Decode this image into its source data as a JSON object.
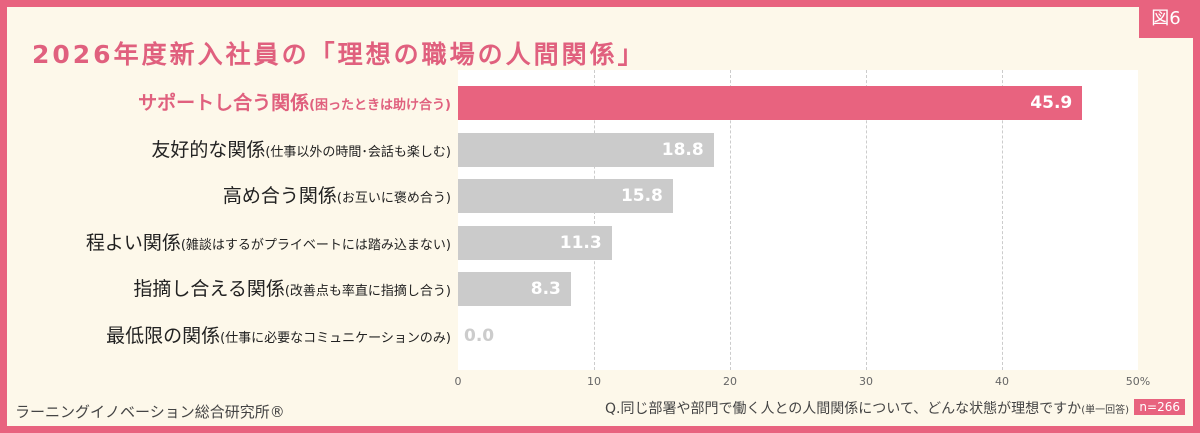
{
  "figure_label": "図6",
  "footer": {
    "source": "ラーニングイノベーション総合研究所®",
    "question": "Q.同じ部署や部門で働く人との人間関係について、どんな状態が理想ですか",
    "question_note": "(単一回答)",
    "n": "n=266"
  },
  "colors": {
    "highlight": "#e8637f",
    "bar": "#cbcbcb"
  },
  "chart_data": {
    "type": "bar",
    "orientation": "horizontal",
    "title": "2026年度新入社員の「理想の職場の人間関係」",
    "categories": [
      {
        "main": "サポートし合う関係",
        "sub": "(困ったときは助け合う)"
      },
      {
        "main": "友好的な関係",
        "sub": "(仕事以外の時間･会話も楽しむ)"
      },
      {
        "main": "高め合う関係",
        "sub": "(お互いに褒め合う)"
      },
      {
        "main": "程よい関係",
        "sub": "(雑談はするがプライベートには踏み込まない)"
      },
      {
        "main": "指摘し合える関係",
        "sub": "(改善点も率直に指摘し合う)"
      },
      {
        "main": "最低限の関係",
        "sub": "(仕事に必要なコミュニケーションのみ)"
      }
    ],
    "values": [
      45.9,
      18.8,
      15.8,
      11.3,
      8.3,
      0.0
    ],
    "value_labels": [
      "45.9",
      "18.8",
      "15.8",
      "11.3",
      "8.3",
      "0.0"
    ],
    "xlim": [
      0,
      50
    ],
    "xticks": [
      "0",
      "10",
      "20",
      "30",
      "40",
      "50%"
    ],
    "grid": true
  }
}
